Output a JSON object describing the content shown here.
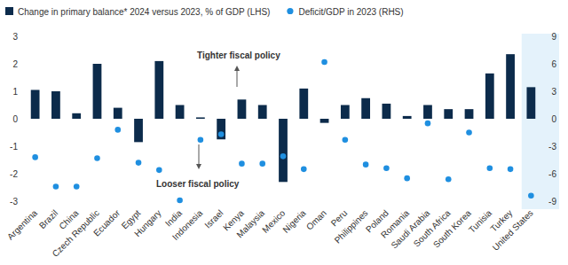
{
  "chart_data": {
    "type": "bar",
    "categories": [
      "Argentina",
      "Brazil",
      "China",
      "Czech Republic",
      "Ecuador",
      "Egypt",
      "Hungary",
      "India",
      "Indonesia",
      "Israel",
      "Kenya",
      "Malaysia",
      "Mexico",
      "Nigeria",
      "Oman",
      "Peru",
      "Philippines",
      "Poland",
      "Romania",
      "Saudi Arabia",
      "South Africa",
      "South Korea",
      "Tunisia",
      "Turkey",
      "United States"
    ],
    "series": [
      {
        "name": "Change in primary balance* 2024 versus 2023, % of GDP (LHS)",
        "type": "bar",
        "color": "#0c2b4b",
        "values": [
          1.05,
          1.0,
          0.2,
          2.0,
          0.4,
          -0.85,
          2.1,
          0.5,
          0.05,
          -0.75,
          0.7,
          0.5,
          -2.3,
          1.1,
          -0.15,
          0.5,
          0.75,
          0.55,
          0.1,
          0.5,
          0.35,
          0.35,
          1.65,
          2.35,
          1.15
        ]
      },
      {
        "name": "Deficit/GDP in 2023 (RHS)",
        "type": "scatter",
        "marker": "circle",
        "axis": "y2",
        "color": "#1f8fe0",
        "values": [
          -4.2,
          -7.4,
          -7.4,
          -4.3,
          -1.2,
          -4.8,
          -5.6,
          -8.9,
          -2.3,
          -1.7,
          -4.9,
          -4.9,
          -4.1,
          -5.5,
          6.2,
          -2.3,
          -5.0,
          -5.4,
          -6.5,
          -0.5,
          -6.6,
          -1.5,
          -5.4,
          -5.5,
          -8.4
        ]
      }
    ],
    "ylim": [
      -3,
      3
    ],
    "yticks": [
      -3,
      -2,
      -1,
      0,
      1,
      2,
      3
    ],
    "y2lim": [
      -9,
      9
    ],
    "y2ticks": [
      -9,
      -6,
      -3,
      0,
      3,
      6,
      9
    ],
    "annotations": [
      "Tighter fiscal policy",
      "Looser fiscal policy"
    ],
    "legend": "top-left",
    "grid": false
  }
}
